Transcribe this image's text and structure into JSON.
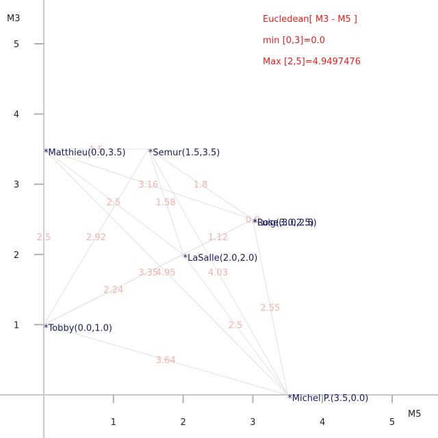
{
  "chart_data": {
    "type": "scatter",
    "xlabel": "M5",
    "ylabel": "M3",
    "xlim": [
      -0.6,
      5.6
    ],
    "ylim": [
      -0.6,
      5.6
    ],
    "x_ticks": [
      1,
      2,
      3,
      4,
      5
    ],
    "y_ticks": [
      1,
      2,
      3,
      4,
      5
    ],
    "grid": false,
    "info_lines": [
      "Eucledean[ M3 - M5 ]",
      "min [0,3]=0.0",
      "Max [2,5]=4.9497476"
    ],
    "points": [
      {
        "label": "*Matthieu(0.0,3.5)",
        "x": 0.0,
        "y": 3.5
      },
      {
        "label": "*Semur(1.5,3.5)",
        "x": 1.5,
        "y": 3.5
      },
      {
        "label": "*Rose(3.0,2.5)",
        "x": 3.0,
        "y": 2.5
      },
      {
        "label": "*Luig(3.0,2.5)",
        "x": 3.0,
        "y": 2.5
      },
      {
        "label": "*LaSalle(2.0,2.0)",
        "x": 2.0,
        "y": 2.0
      },
      {
        "label": "*Tobby(0.0,1.0)",
        "x": 0.0,
        "y": 1.0
      },
      {
        "label": "*Michel P.(3.5,0.0)",
        "x": 3.5,
        "y": 0.0
      }
    ],
    "distances": [
      {
        "a": 0,
        "b": 1,
        "value": "1.5"
      },
      {
        "a": 0,
        "b": 2,
        "value": "3.16"
      },
      {
        "a": 0,
        "b": 4,
        "value": "2.5"
      },
      {
        "a": 0,
        "b": 5,
        "value": "2.5"
      },
      {
        "a": 0,
        "b": 6,
        "value": "4.95"
      },
      {
        "a": 1,
        "b": 2,
        "value": "1.8"
      },
      {
        "a": 1,
        "b": 4,
        "value": "1.58"
      },
      {
        "a": 1,
        "b": 5,
        "value": "2.92"
      },
      {
        "a": 1,
        "b": 6,
        "value": "4.03"
      },
      {
        "a": 2,
        "b": 3,
        "value": "0.0"
      },
      {
        "a": 2,
        "b": 4,
        "value": "1.12"
      },
      {
        "a": 2,
        "b": 5,
        "value": "3.35"
      },
      {
        "a": 2,
        "b": 6,
        "value": "2.55"
      },
      {
        "a": 4,
        "b": 5,
        "value": "2.24"
      },
      {
        "a": 4,
        "b": 6,
        "value": "2.5"
      },
      {
        "a": 5,
        "b": 6,
        "value": "3.64"
      }
    ]
  }
}
